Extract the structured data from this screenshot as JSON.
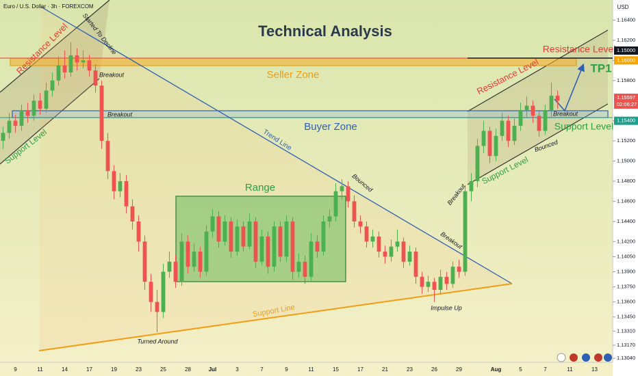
{
  "chart_data": {
    "type": "candlestick",
    "symbol": "Euro / U.S. Dollar · 3h · FOREXCOM",
    "currency": "USD",
    "title": "Technical Analysis",
    "up_color": "#4caf50",
    "down_color": "#ef5350",
    "categories": [
      null,
      null,
      "9",
      null,
      null,
      null,
      "11",
      null,
      null,
      null,
      "14",
      null,
      null,
      null,
      "17",
      null,
      null,
      null,
      "19",
      null,
      null,
      null,
      "23",
      null,
      null,
      null,
      "25",
      null,
      null,
      null,
      "28",
      null,
      null,
      null,
      "Jul",
      null,
      null,
      null,
      "3",
      null,
      null,
      null,
      "7",
      null,
      null,
      null,
      "9",
      null,
      null,
      null,
      "11",
      null,
      null,
      null,
      "15",
      null,
      null,
      null,
      "17",
      null,
      null,
      null,
      "21",
      null,
      null,
      null,
      "23",
      null,
      null,
      null,
      "26",
      null,
      null,
      null,
      "29",
      null,
      null,
      null,
      null,
      null,
      "Aug",
      null,
      null,
      null,
      "5",
      null,
      null,
      null,
      "7",
      null,
      null,
      null,
      "11",
      null,
      null,
      null,
      "13",
      null,
      null
    ],
    "open": [
      1.152,
      1.1528,
      1.154,
      1.1535,
      1.155,
      1.1545,
      1.156,
      1.1552,
      1.157,
      1.158,
      1.1595,
      1.1588,
      1.1605,
      1.1598,
      1.16,
      1.159,
      1.1575,
      1.152,
      1.149,
      1.147,
      1.148,
      1.1455,
      1.144,
      1.142,
      1.138,
      1.136,
      1.135,
      1.139,
      1.14,
      1.138,
      1.142,
      1.1395,
      1.141,
      1.139,
      1.143,
      1.1445,
      1.142,
      1.144,
      1.141,
      1.1435,
      1.1415,
      1.144,
      1.14,
      1.1425,
      1.1395,
      1.1435,
      1.1405,
      1.144,
      1.139,
      1.14,
      1.1385,
      1.142,
      1.141,
      1.144,
      1.1445,
      1.147,
      1.1475,
      1.146,
      1.144,
      1.1435,
      1.142,
      1.1425,
      1.141,
      1.1405,
      1.1415,
      1.142,
      1.14,
      1.141,
      1.1385,
      1.1375,
      1.138,
      1.1372,
      1.1385,
      1.1378,
      1.1395,
      1.139,
      1.147,
      1.148,
      1.1515,
      1.153,
      1.1505,
      1.1525,
      1.154,
      1.152,
      1.1535,
      1.155,
      1.1555,
      1.1545,
      1.153,
      1.155,
      1.1565,
      null,
      null,
      null,
      null,
      null,
      null,
      null,
      null
    ],
    "high": [
      1.1534,
      1.1548,
      1.1546,
      1.1556,
      1.1558,
      1.1566,
      1.1568,
      1.1578,
      1.1588,
      1.1604,
      1.161,
      1.1618,
      1.1612,
      1.161,
      1.1606,
      1.1596,
      1.158,
      1.1528,
      1.1496,
      1.1488,
      1.1486,
      1.1462,
      1.1446,
      1.1426,
      1.1388,
      1.1372,
      1.1398,
      1.141,
      1.1406,
      1.1428,
      1.1426,
      1.1418,
      1.1415,
      1.1436,
      1.1452,
      1.145,
      1.1446,
      1.1444,
      1.1442,
      1.144,
      1.1448,
      1.1444,
      1.1432,
      1.143,
      1.144,
      1.144,
      1.1446,
      1.1444,
      1.1408,
      1.1406,
      1.1428,
      1.1426,
      1.1446,
      1.1452,
      1.1478,
      1.1482,
      1.148,
      1.1466,
      1.1446,
      1.144,
      1.1432,
      1.143,
      1.1416,
      1.1422,
      1.1432,
      1.1424,
      1.1416,
      1.1414,
      1.139,
      1.1386,
      1.1384,
      1.1392,
      1.139,
      1.14,
      1.1402,
      1.1476,
      1.1488,
      1.1522,
      1.154,
      1.1534,
      1.1532,
      1.1548,
      1.1545,
      1.1542,
      1.1558,
      1.1564,
      1.156,
      1.155,
      1.1556,
      1.1578,
      1.157,
      null,
      null,
      null,
      null,
      null,
      null,
      null,
      null
    ],
    "low": [
      1.1512,
      1.1522,
      1.1528,
      1.153,
      1.1538,
      1.154,
      1.1546,
      1.1548,
      1.1564,
      1.1575,
      1.1582,
      1.1584,
      1.159,
      1.1592,
      1.1584,
      1.1568,
      1.1512,
      1.1482,
      1.1462,
      1.1464,
      1.1448,
      1.1432,
      1.141,
      1.1372,
      1.135,
      1.133,
      1.1344,
      1.1384,
      1.1374,
      1.1376,
      1.1388,
      1.139,
      1.1384,
      1.1386,
      1.1424,
      1.1414,
      1.1416,
      1.1404,
      1.1406,
      1.141,
      1.1412,
      1.1394,
      1.1396,
      1.1388,
      1.139,
      1.14,
      1.14,
      1.1382,
      1.1384,
      1.1378,
      1.138,
      1.1404,
      1.1406,
      1.1434,
      1.144,
      1.1462,
      1.1454,
      1.1434,
      1.1428,
      1.1414,
      1.1414,
      1.1404,
      1.1398,
      1.14,
      1.141,
      1.1394,
      1.1396,
      1.1378,
      1.1368,
      1.137,
      1.136,
      1.1368,
      1.1372,
      1.1374,
      1.1384,
      1.1386,
      1.146,
      1.1474,
      1.1508,
      1.1498,
      1.15,
      1.152,
      1.1514,
      1.1516,
      1.153,
      1.1544,
      1.1538,
      1.1524,
      1.1526,
      1.1544,
      1.1552,
      null,
      null,
      null,
      null,
      null,
      null,
      null,
      null
    ],
    "close": [
      1.1528,
      1.154,
      1.1535,
      1.155,
      1.1545,
      1.156,
      1.1552,
      1.157,
      1.158,
      1.1595,
      1.1588,
      1.1605,
      1.1598,
      1.16,
      1.159,
      1.1575,
      1.152,
      1.149,
      1.147,
      1.148,
      1.1455,
      1.144,
      1.142,
      1.138,
      1.136,
      1.135,
      1.139,
      1.14,
      1.138,
      1.142,
      1.1395,
      1.141,
      1.139,
      1.143,
      1.1445,
      1.142,
      1.144,
      1.141,
      1.1435,
      1.1415,
      1.144,
      1.14,
      1.1425,
      1.1395,
      1.1435,
      1.1405,
      1.144,
      1.139,
      1.14,
      1.1385,
      1.142,
      1.141,
      1.144,
      1.1445,
      1.147,
      1.1475,
      1.146,
      1.144,
      1.1435,
      1.142,
      1.1425,
      1.141,
      1.1405,
      1.1415,
      1.142,
      1.14,
      1.141,
      1.1385,
      1.1375,
      1.138,
      1.1372,
      1.1385,
      1.1378,
      1.1395,
      1.139,
      1.147,
      1.148,
      1.1515,
      1.153,
      1.1505,
      1.1525,
      1.154,
      1.152,
      1.1535,
      1.155,
      1.1555,
      1.1545,
      1.153,
      1.155,
      1.1565,
      1.156,
      null,
      null,
      null,
      null,
      null,
      null,
      null,
      null
    ],
    "ylim": [
      1.13,
      1.166
    ],
    "yticks": [
      {
        "value": 1.164,
        "label": "1.16400"
      },
      {
        "value": 1.162,
        "label": "1.16200"
      },
      {
        "value": 1.16,
        "label": "1.16000",
        "color": "#f7a600"
      },
      {
        "value": 1.158,
        "label": "1.15800"
      },
      {
        "value": 1.154,
        "label": "1.15400",
        "color": "#1e9e8c"
      },
      {
        "value": 1.152,
        "label": "1.15200"
      },
      {
        "value": 1.15,
        "label": "1.15000"
      },
      {
        "value": 1.148,
        "label": "1.14800"
      },
      {
        "value": 1.146,
        "label": "1.14600"
      },
      {
        "value": 1.144,
        "label": "1.14400"
      },
      {
        "value": 1.142,
        "label": "1.14200"
      },
      {
        "value": 1.1405,
        "label": "1.14050"
      },
      {
        "value": 1.139,
        "label": "1.13900"
      },
      {
        "value": 1.1375,
        "label": "1.13750"
      },
      {
        "value": 1.136,
        "label": "1.13600"
      },
      {
        "value": 1.1345,
        "label": "1.13450"
      },
      {
        "value": 1.1331,
        "label": "1.13310"
      },
      {
        "value": 1.1317,
        "label": "1.13170"
      },
      {
        "value": 1.1304,
        "label": "1.13040"
      }
    ],
    "price_tags": [
      "1.15000",
      "1.15597",
      "02:06:27"
    ],
    "annotations": [
      "Resistance Level",
      "Started To Decline",
      "Breakout",
      "Seller Zone",
      "Breakout",
      "Buyer Zone",
      "Trend Line",
      "Support Level",
      "Range",
      "Bounced",
      "Breakout",
      "Support Line",
      "Turned Around",
      "Impulse Up",
      "Breakout",
      "Resistance Level",
      "Support Level",
      "Bounced",
      "Breakout",
      "Resistance Level",
      "Support Level",
      "TP1"
    ]
  }
}
